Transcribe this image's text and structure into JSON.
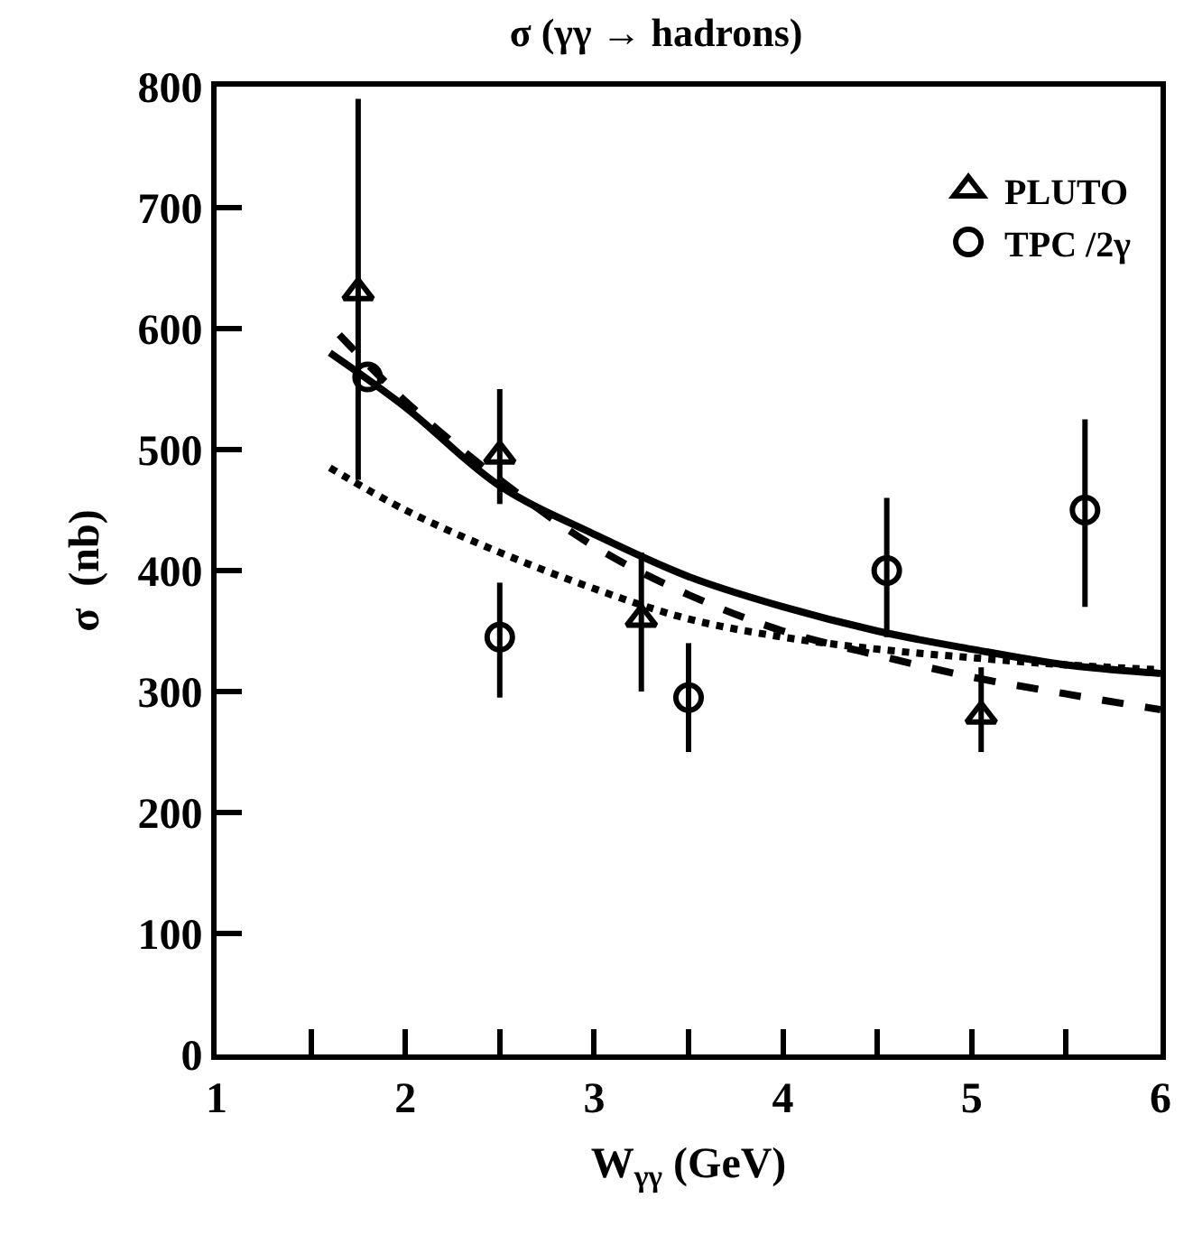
{
  "chart_data": {
    "type": "scatter",
    "title": "σ (γγ → hadrons)",
    "xlabel": "W$_{γγ}$ (GeV)",
    "ylabel": "σ  (nb)",
    "xlim": [
      1,
      6
    ],
    "ylim": [
      0,
      800
    ],
    "xticks": [
      1,
      {
        "value": 1.5,
        "label": null
      },
      2,
      {
        "value": 2.5,
        "label": null
      },
      3,
      {
        "value": 3.5,
        "label": null
      },
      4,
      {
        "value": 4.5,
        "label": null
      },
      5,
      {
        "value": 5.5,
        "label": null
      },
      6
    ],
    "yticks": [
      0,
      100,
      200,
      300,
      400,
      500,
      600,
      700,
      800
    ],
    "legend": "top right",
    "series": [
      {
        "name": "PLUTO",
        "marker": "triangle",
        "color": "#000000",
        "x": [
          1.75,
          2.5,
          3.25,
          5.05
        ],
        "values": [
          630,
          495,
          360,
          280
        ],
        "errors": [
          [
            475,
            790
          ],
          [
            455,
            550
          ],
          [
            300,
            415
          ],
          [
            250,
            320
          ]
        ]
      },
      {
        "name": "TPC /2γ",
        "marker": "circle",
        "color": "#000000",
        "x": [
          1.8,
          2.5,
          3.5,
          4.55,
          5.6
        ],
        "values": [
          560,
          345,
          295,
          400,
          450
        ],
        "errors": [
          null,
          [
            295,
            390
          ],
          [
            250,
            340
          ],
          [
            345,
            460
          ],
          [
            370,
            525
          ]
        ]
      },
      {
        "type": "line",
        "line_style": "solid",
        "color": "#000000",
        "x": [
          1.6,
          2,
          2.5,
          3,
          3.5,
          4,
          4.5,
          5,
          5.5,
          6
        ],
        "values": [
          580,
          535,
          470,
          430,
          395,
          370,
          350,
          335,
          322,
          315
        ]
      },
      {
        "type": "line",
        "line_style": "dashed",
        "color": "#000000",
        "x": [
          1.65,
          2,
          2.5,
          3,
          3.5,
          4,
          4.5,
          5,
          5.5,
          6
        ],
        "values": [
          595,
          540,
          475,
          420,
          380,
          350,
          330,
          312,
          298,
          285
        ]
      },
      {
        "type": "line",
        "line_style": "dotted",
        "color": "#000000",
        "x": [
          1.6,
          2,
          2.5,
          3,
          3.5,
          4,
          4.5,
          5,
          5.5,
          6
        ],
        "values": [
          485,
          450,
          415,
          385,
          360,
          345,
          335,
          328,
          322,
          318
        ]
      }
    ]
  }
}
